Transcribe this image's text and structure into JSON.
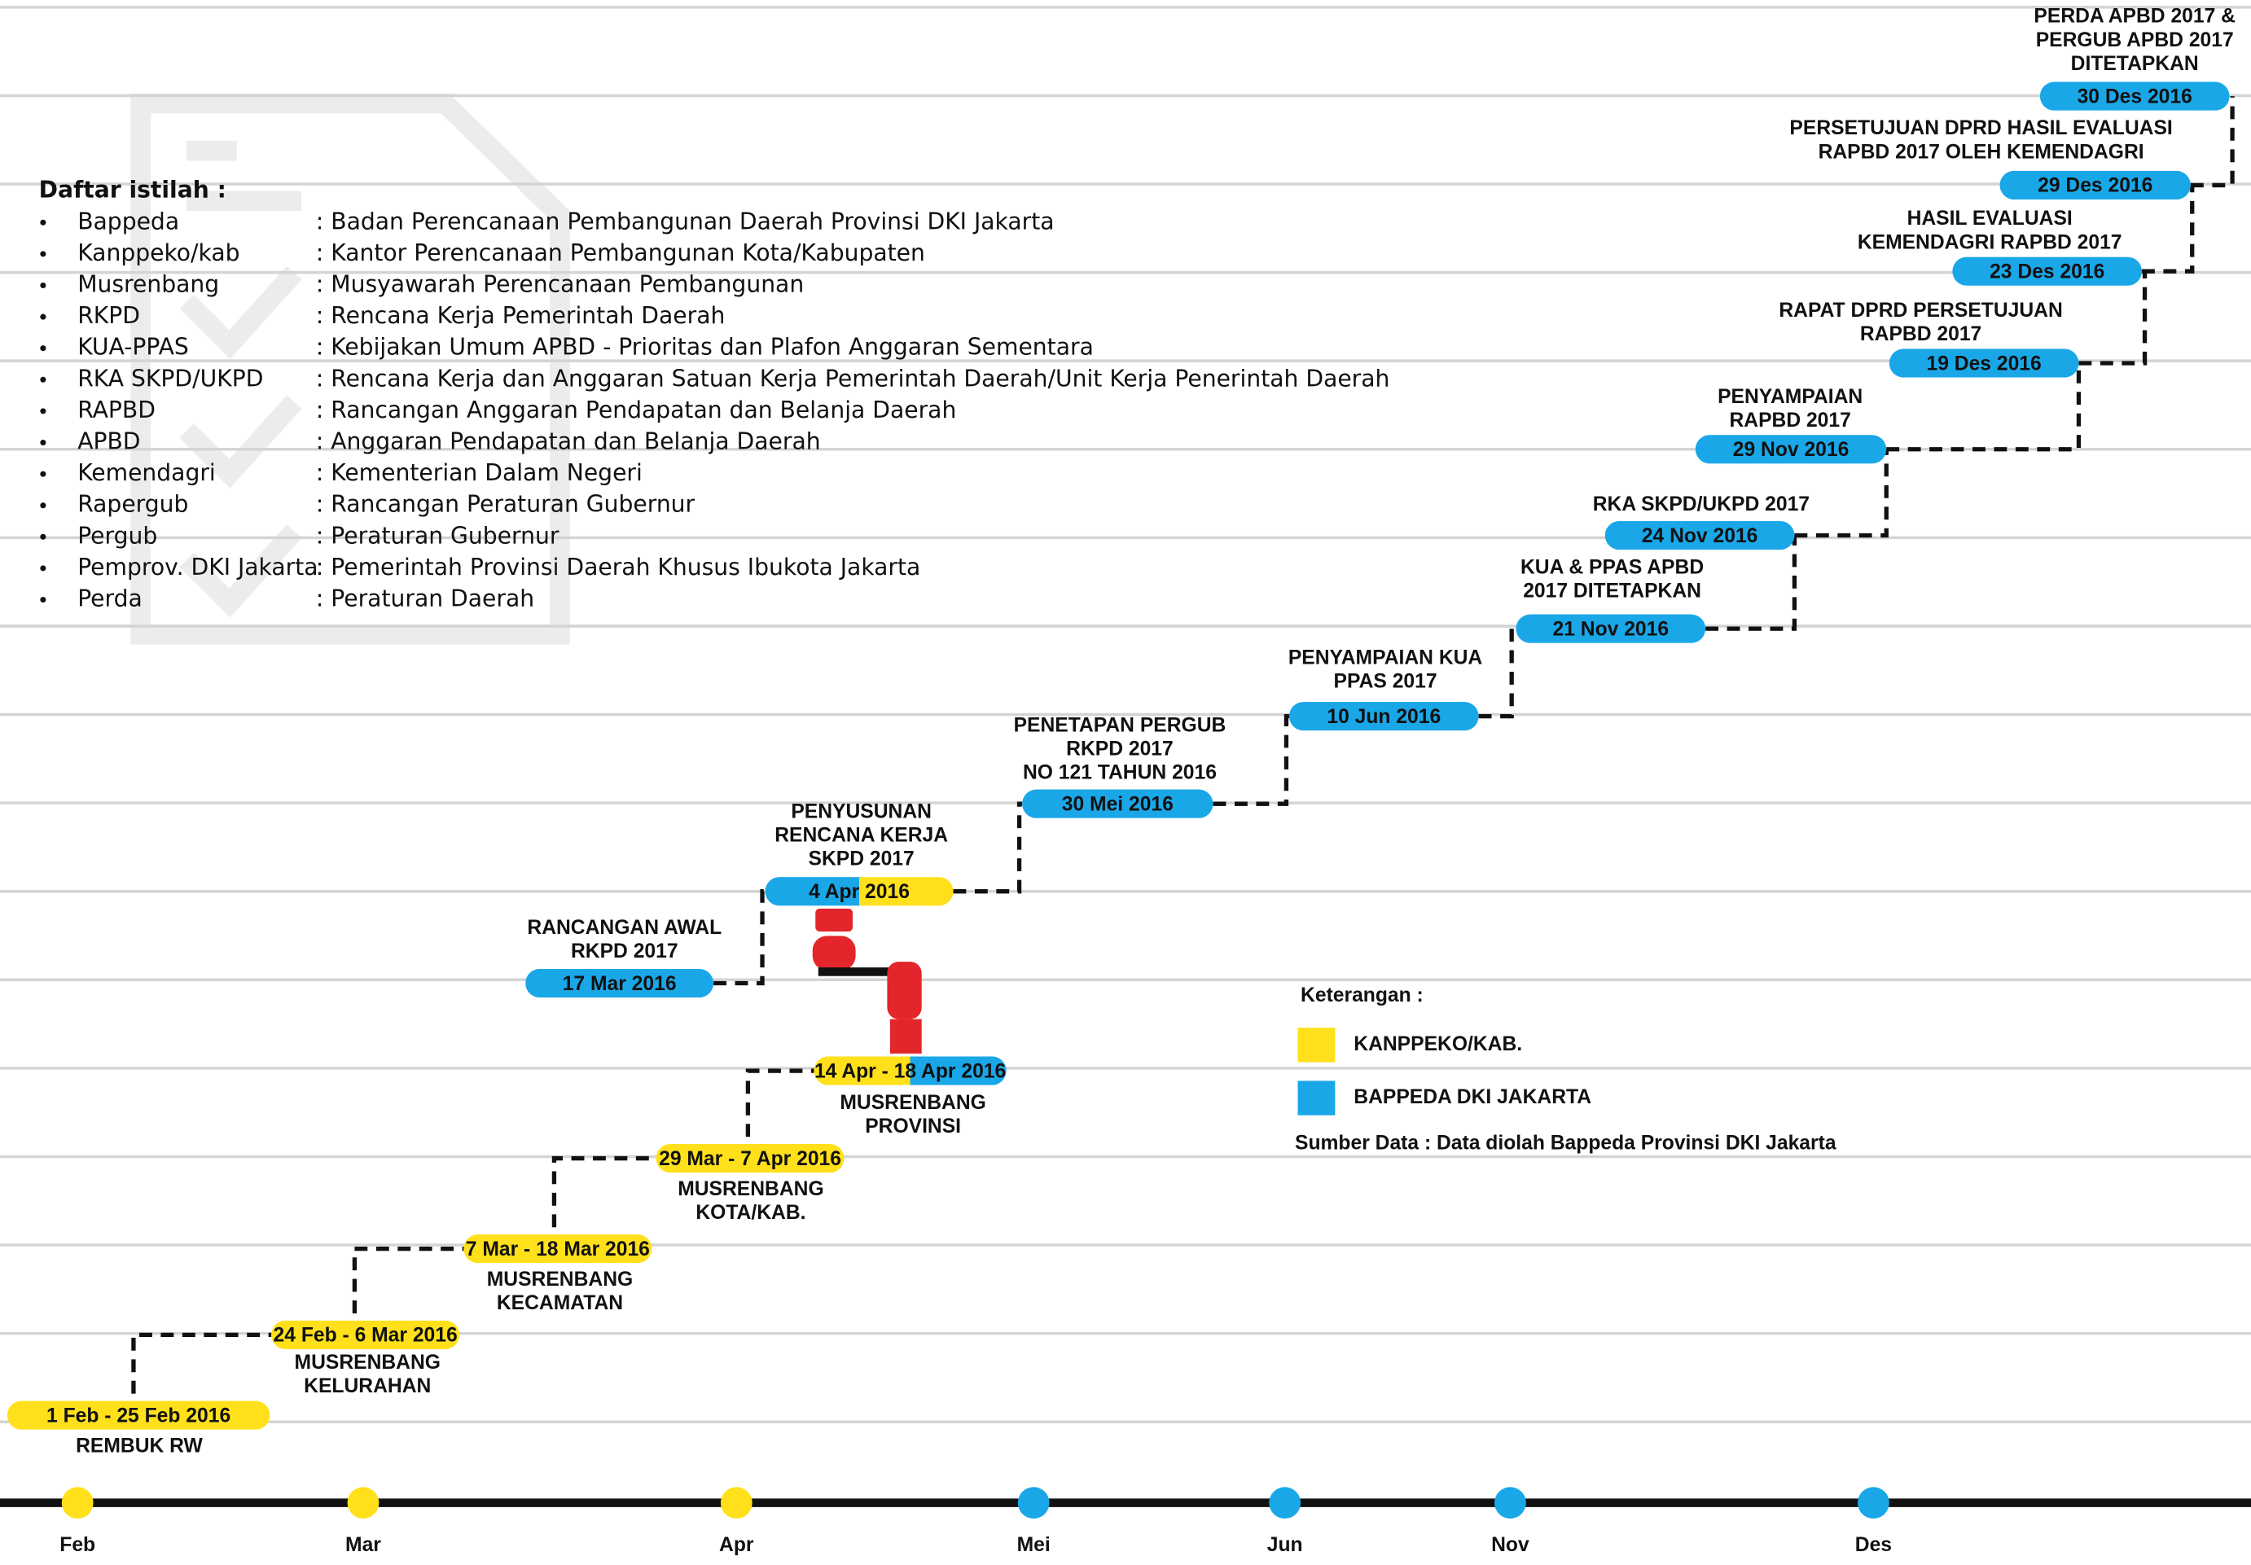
{
  "glossary": {
    "title": "Daftar istilah :",
    "items": [
      {
        "term": "Bappeda",
        "definition": ": Badan Perencanaan Pembangunan Daerah Provinsi DKI Jakarta"
      },
      {
        "term": "Kanppeko/kab",
        "definition": ": Kantor Perencanaan Pembangunan Kota/Kabupaten"
      },
      {
        "term": "Musrenbang",
        "definition": ": Musyawarah Perencanaan Pembangunan"
      },
      {
        "term": "RKPD",
        "definition": ": Rencana Kerja Pemerintah Daerah"
      },
      {
        "term": "KUA-PPAS",
        "definition": ": Kebijakan Umum APBD - Prioritas dan Plafon Anggaran Sementara"
      },
      {
        "term": "RKA SKPD/UKPD",
        "definition": ": Rencana Kerja dan Anggaran Satuan Kerja Pemerintah Daerah/Unit Kerja Penerintah Daerah"
      },
      {
        "term": "RAPBD",
        "definition": ": Rancangan Anggaran Pendapatan dan Belanja Daerah"
      },
      {
        "term": "APBD",
        "definition": ": Anggaran Pendapatan dan Belanja Daerah"
      },
      {
        "term": "Kemendagri",
        "definition": ": Kementerian Dalam Negeri"
      },
      {
        "term": "Rapergub",
        "definition": ": Rancangan Peraturan Gubernur"
      },
      {
        "term": "Pergub",
        "definition": ": Peraturan Gubernur"
      },
      {
        "term": "Pemprov. DKI Jakarta",
        "definition": ": Pemerintah Provinsi Daerah Khusus Ibukota Jakarta"
      },
      {
        "term": "Perda",
        "definition": ": Peraturan Daerah"
      }
    ]
  },
  "steps": [
    {
      "date": "1 Feb - 25 Feb 2016",
      "label": [
        "REMBUK RW"
      ],
      "colors": [
        "#ffe01b"
      ]
    },
    {
      "date": "24 Feb - 6 Mar 2016",
      "label": [
        "MUSRENBANG",
        "KELURAHAN"
      ],
      "colors": [
        "#ffe01b"
      ]
    },
    {
      "date": "7 Mar - 18 Mar 2016",
      "label": [
        "MUSRENBANG",
        "KECAMATAN"
      ],
      "colors": [
        "#ffe01b"
      ]
    },
    {
      "date": "29 Mar - 7 Apr 2016",
      "label": [
        "MUSRENBANG",
        "KOTA/KAB."
      ],
      "colors": [
        "#ffe01b"
      ]
    },
    {
      "date": "14 Apr - 18 Apr 2016",
      "label": [
        "MUSRENBANG",
        "PROVINSI"
      ],
      "colors": [
        "#ffe01b",
        "#1aa7e8"
      ]
    },
    {
      "date": "17 Mar 2016",
      "label": [
        "RANCANGAN AWAL",
        "RKPD 2017"
      ],
      "colors": [
        "#1aa7e8"
      ]
    },
    {
      "date": "4 Apr 2016",
      "label": [
        "PENYUSUNAN",
        "RENCANA KERJA",
        "SKPD 2017"
      ],
      "colors": [
        "#1aa7e8",
        "#ffe01b"
      ]
    },
    {
      "date": "30 Mei 2016",
      "label": [
        "PENETAPAN PERGUB",
        "RKPD 2017",
        "NO 121 TAHUN 2016"
      ],
      "colors": [
        "#1aa7e8"
      ]
    },
    {
      "date": "10 Jun 2016",
      "label": [
        "PENYAMPAIAN KUA",
        "PPAS 2017"
      ],
      "colors": [
        "#1aa7e8"
      ]
    },
    {
      "date": "21 Nov 2016",
      "label": [
        "KUA & PPAS APBD",
        "2017 DITETAPKAN"
      ],
      "colors": [
        "#1aa7e8"
      ]
    },
    {
      "date": "24 Nov 2016",
      "label": [
        "RKA SKPD/UKPD 2017"
      ],
      "colors": [
        "#1aa7e8"
      ]
    },
    {
      "date": "29 Nov 2016",
      "label": [
        "PENYAMPAIAN",
        "RAPBD 2017"
      ],
      "colors": [
        "#1aa7e8"
      ]
    },
    {
      "date": "19 Des 2016",
      "label": [
        "RAPAT DPRD PERSETUJUAN",
        "RAPBD 2017"
      ],
      "colors": [
        "#1aa7e8"
      ]
    },
    {
      "date": "23 Des 2016",
      "label": [
        "HASIL EVALUASI",
        "KEMENDAGRI RAPBD 2017"
      ],
      "colors": [
        "#1aa7e8"
      ]
    },
    {
      "date": "29 Des 2016",
      "label": [
        "PERSETUJUAN DPRD HASIL EVALUASI",
        "RAPBD 2017 OLEH KEMENDAGRI"
      ],
      "colors": [
        "#1aa7e8"
      ]
    },
    {
      "date": "30 Des 2016",
      "label": [
        "PERDA APBD 2017 &",
        "PERGUB APBD 2017",
        "DITETAPKAN"
      ],
      "colors": [
        "#1aa7e8"
      ]
    }
  ],
  "months": [
    {
      "label": "Feb",
      "color": "#ffe01b"
    },
    {
      "label": "Mar",
      "color": "#ffe01b"
    },
    {
      "label": "Apr",
      "color": "#ffe01b"
    },
    {
      "label": "Mei",
      "color": "#1aa7e8"
    },
    {
      "label": "Jun",
      "color": "#1aa7e8"
    },
    {
      "label": "Nov",
      "color": "#1aa7e8"
    },
    {
      "label": "Des",
      "color": "#1aa7e8"
    }
  ],
  "legend": {
    "title": "Keterangan :",
    "items": [
      {
        "label": "KANPPEKO/KAB.",
        "color": "#ffe01b"
      },
      {
        "label": "BAPPEDA DKI JAKARTA",
        "color": "#1aa7e8"
      }
    ]
  },
  "source": "Sumber Data : Data diolah Bappeda Provinsi DKI Jakarta"
}
